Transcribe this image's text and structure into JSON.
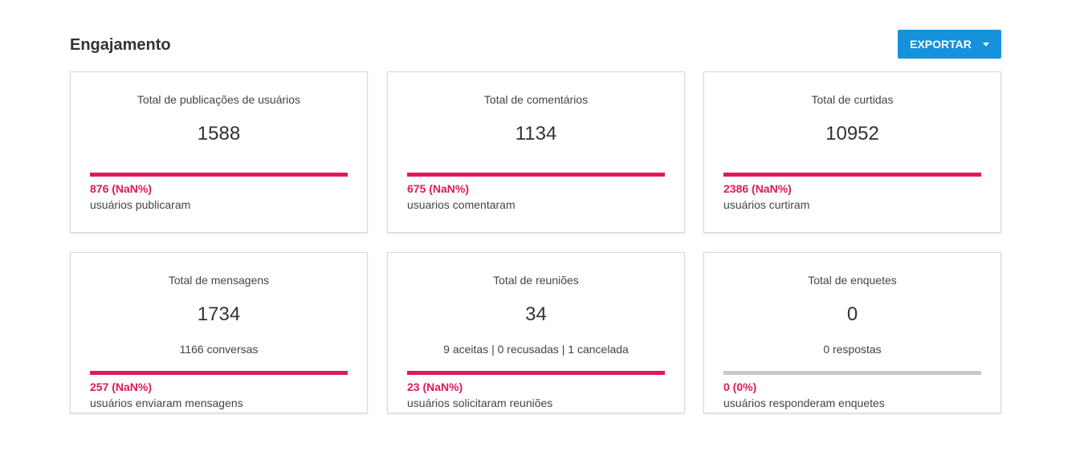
{
  "header": {
    "title": "Engajamento",
    "button": "EXPORTAR"
  },
  "cards": [
    {
      "title": "Total de publicações de usuários",
      "value": "1588",
      "stat": "876 (NaN%)",
      "stat_label": "usuários publicaram",
      "bar_color": "#e0195c"
    },
    {
      "title": "Total de comentários",
      "value": "1134",
      "stat": "675 (NaN%)",
      "stat_label": "usuarios comentaram",
      "bar_color": "#e0195c"
    },
    {
      "title": "Total de curtidas",
      "value": "10952",
      "stat": "2386 (NaN%)",
      "stat_label": "usuários curtiram",
      "bar_color": "#e0195c"
    },
    {
      "title": "Total de mensagens",
      "value": "1734",
      "subtitle": "1166 conversas",
      "stat": "257 (NaN%)",
      "stat_label": "usuários enviaram mensagens",
      "bar_color": "#e0195c"
    },
    {
      "title": "Total de reuniões",
      "value": "34",
      "subtitle": "9 aceitas | 0 recusadas | 1 cancelada",
      "stat": "23 (NaN%)",
      "stat_label": "usuários solicitaram reuniões",
      "bar_color": "#e0195c"
    },
    {
      "title": "Total de enquetes",
      "value": "0",
      "subtitle": "0 respostas",
      "stat": "0 (0%)",
      "stat_label": "usuários responderam enquetes",
      "bar_color": "#c8c8c8"
    }
  ]
}
